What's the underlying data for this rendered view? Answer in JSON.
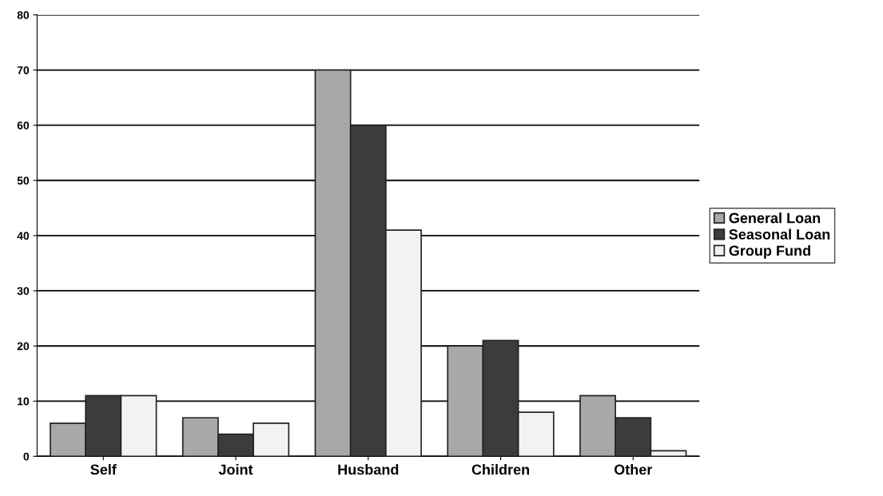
{
  "chart_data": {
    "type": "bar",
    "categories": [
      "Self",
      "Joint",
      "Husband",
      "Children",
      "Other"
    ],
    "series": [
      {
        "name": "General Loan",
        "color": "#a8a8a8",
        "values": [
          6,
          7,
          70,
          20,
          11
        ]
      },
      {
        "name": "Seasonal Loan",
        "color": "#3c3c3c",
        "values": [
          11,
          4,
          60,
          21,
          7
        ]
      },
      {
        "name": "Group Fund",
        "color": "#f2f2f2",
        "values": [
          11,
          6,
          41,
          8,
          1
        ]
      }
    ],
    "ylim": [
      0,
      80
    ],
    "yticks": [
      0,
      10,
      20,
      30,
      40,
      50,
      60,
      70,
      80
    ],
    "grid": "y",
    "legend": "right"
  }
}
